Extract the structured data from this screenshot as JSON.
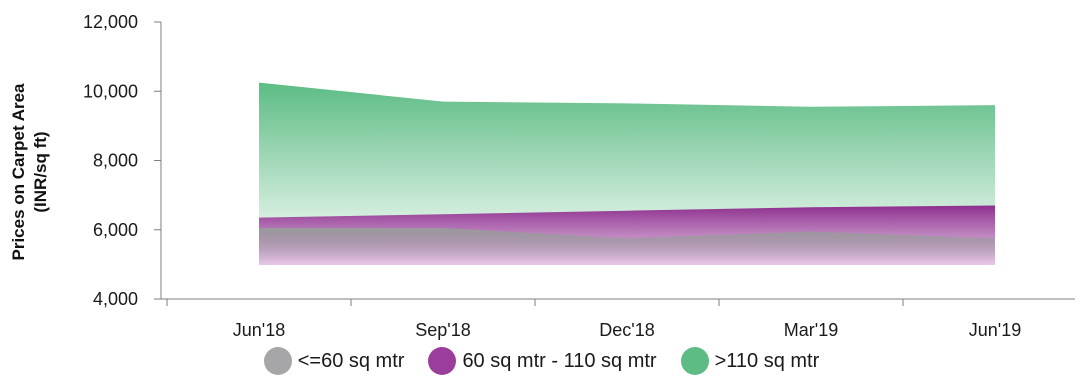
{
  "chart_data": {
    "type": "area",
    "categories": [
      "Jun'18",
      "Sep'18",
      "Dec'18",
      "Mar'19",
      "Jun'19"
    ],
    "series": [
      {
        "name": "<=60 sq mtr",
        "values": [
          6050,
          6050,
          5750,
          5950,
          5750
        ],
        "color": "#a6a6a8"
      },
      {
        "name": "60 sq mtr - 110 sq mtr",
        "values": [
          6350,
          6450,
          6550,
          6650,
          6700
        ],
        "color": "#9b3e9b"
      },
      {
        "name": ">110 sq mtr",
        "values": [
          10250,
          9700,
          9650,
          9550,
          9600
        ],
        "color": "#5cbc84"
      }
    ],
    "ylabel": [
      "Prices on Carpet Area",
      "(INR/sq ft)"
    ],
    "ylim": [
      4000,
      12000
    ],
    "yticks": [
      4000,
      6000,
      8000,
      10000,
      12000
    ],
    "ytick_labels": [
      "4,000",
      "6,000",
      "8,000",
      "10,000",
      "12,000"
    ],
    "grid": false,
    "legend_position": "bottom"
  }
}
